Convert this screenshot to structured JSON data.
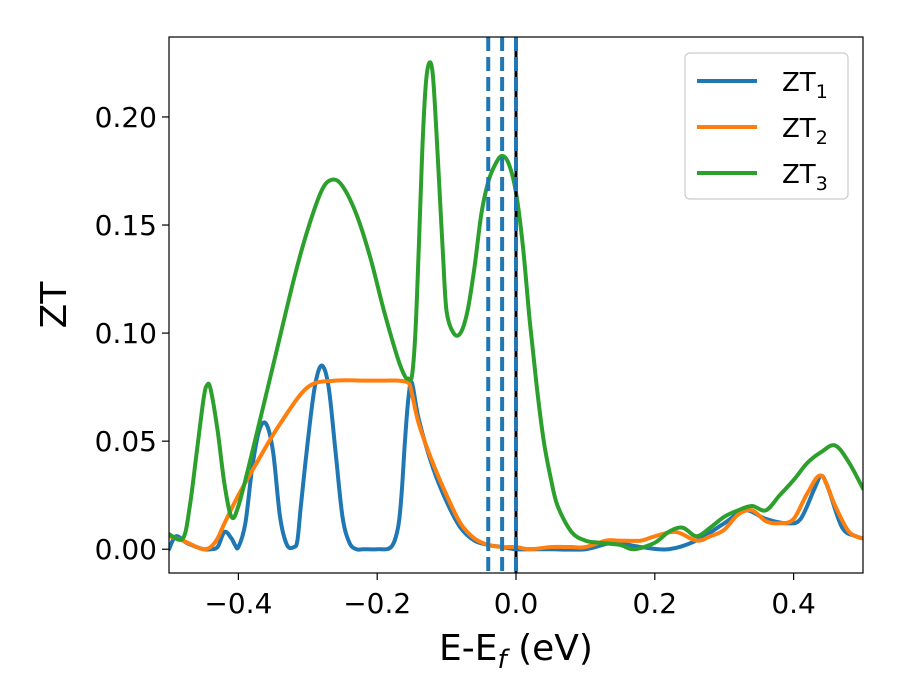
{
  "chart_data": {
    "type": "line",
    "xlabel": "E-E",
    "xlabel_sub": "f",
    "xlabel_unit": " (eV)",
    "ylabel": "ZT",
    "xlim": [
      -0.5,
      0.5
    ],
    "ylim": [
      -0.011,
      0.237
    ],
    "xticks": [
      -0.4,
      -0.2,
      0.0,
      0.2,
      0.4
    ],
    "xtick_labels": [
      "−0.4",
      "−0.2",
      "0.0",
      "0.2",
      "0.4"
    ],
    "yticks": [
      0.0,
      0.05,
      0.1,
      0.15,
      0.2
    ],
    "ytick_labels": [
      "0.00",
      "0.05",
      "0.10",
      "0.15",
      "0.20"
    ],
    "grid": false,
    "legend_position": "top-right",
    "legend": [
      {
        "base": "ZT",
        "sub": "1",
        "color": "#1f77b4"
      },
      {
        "base": "ZT",
        "sub": "2",
        "color": "#ff7f0e"
      },
      {
        "base": "ZT",
        "sub": "3",
        "color": "#2ca02c"
      }
    ],
    "vlines": [
      {
        "x": -0.04,
        "style": "dashed",
        "color": "#1f77b4"
      },
      {
        "x": -0.02,
        "style": "dashed",
        "color": "#1f77b4"
      },
      {
        "x": 0.0,
        "style": "solid",
        "color": "#000000"
      },
      {
        "x": 0.0,
        "style": "dashed",
        "color": "#1f77b4"
      }
    ],
    "series": [
      {
        "color": "#1f77b4",
        "x": [
          -0.5,
          -0.49,
          -0.475,
          -0.46,
          -0.45,
          -0.44,
          -0.43,
          -0.42,
          -0.41,
          -0.405,
          -0.4,
          -0.39,
          -0.38,
          -0.37,
          -0.36,
          -0.35,
          -0.34,
          -0.33,
          -0.32,
          -0.315,
          -0.31,
          -0.3,
          -0.29,
          -0.28,
          -0.27,
          -0.26,
          -0.25,
          -0.24,
          -0.23,
          -0.22,
          -0.2,
          -0.18,
          -0.17,
          -0.165,
          -0.16,
          -0.155,
          -0.15,
          -0.14,
          -0.12,
          -0.1,
          -0.08,
          -0.06,
          -0.04,
          -0.02,
          0.0,
          0.02,
          0.05,
          0.1,
          0.14,
          0.18,
          0.22,
          0.26,
          0.3,
          0.33,
          0.36,
          0.39,
          0.41,
          0.43,
          0.44,
          0.45,
          0.47,
          0.49,
          0.5
        ],
        "y": [
          0.0,
          0.006,
          0.003,
          0.001,
          0.0,
          0.0,
          0.001,
          0.008,
          0.005,
          0.002,
          0.001,
          0.012,
          0.038,
          0.055,
          0.058,
          0.045,
          0.015,
          0.002,
          0.001,
          0.004,
          0.02,
          0.05,
          0.075,
          0.085,
          0.075,
          0.045,
          0.015,
          0.003,
          0.0,
          0.0,
          0.0,
          0.001,
          0.01,
          0.025,
          0.05,
          0.07,
          0.077,
          0.06,
          0.038,
          0.022,
          0.01,
          0.004,
          0.002,
          0.001,
          0.0,
          0.0,
          0.0,
          0.0,
          0.003,
          0.001,
          0.0,
          0.004,
          0.012,
          0.018,
          0.014,
          0.012,
          0.014,
          0.028,
          0.034,
          0.028,
          0.01,
          0.006,
          0.005
        ]
      },
      {
        "color": "#ff7f0e",
        "x": [
          -0.5,
          -0.48,
          -0.46,
          -0.45,
          -0.44,
          -0.43,
          -0.42,
          -0.4,
          -0.37,
          -0.34,
          -0.3,
          -0.26,
          -0.22,
          -0.19,
          -0.17,
          -0.155,
          -0.15,
          -0.14,
          -0.12,
          -0.1,
          -0.08,
          -0.06,
          -0.04,
          -0.02,
          0.0,
          0.02,
          0.05,
          0.08,
          0.1,
          0.13,
          0.15,
          0.18,
          0.2,
          0.23,
          0.26,
          0.28,
          0.3,
          0.32,
          0.34,
          0.36,
          0.38,
          0.4,
          0.42,
          0.44,
          0.46,
          0.48,
          0.5
        ],
        "y": [
          0.006,
          0.004,
          0.001,
          0.0,
          0.001,
          0.005,
          0.012,
          0.025,
          0.042,
          0.058,
          0.075,
          0.078,
          0.078,
          0.078,
          0.078,
          0.077,
          0.072,
          0.058,
          0.04,
          0.025,
          0.012,
          0.005,
          0.002,
          0.001,
          0.001,
          0.0,
          0.001,
          0.001,
          0.001,
          0.004,
          0.004,
          0.004,
          0.006,
          0.008,
          0.004,
          0.006,
          0.009,
          0.016,
          0.018,
          0.013,
          0.012,
          0.014,
          0.026,
          0.034,
          0.02,
          0.008,
          0.005
        ]
      },
      {
        "color": "#2ca02c",
        "x": [
          -0.5,
          -0.48,
          -0.47,
          -0.46,
          -0.45,
          -0.445,
          -0.44,
          -0.43,
          -0.42,
          -0.41,
          -0.4,
          -0.38,
          -0.35,
          -0.32,
          -0.3,
          -0.28,
          -0.265,
          -0.25,
          -0.23,
          -0.21,
          -0.19,
          -0.17,
          -0.16,
          -0.155,
          -0.15,
          -0.145,
          -0.14,
          -0.135,
          -0.13,
          -0.125,
          -0.12,
          -0.115,
          -0.11,
          -0.105,
          -0.1,
          -0.09,
          -0.08,
          -0.07,
          -0.06,
          -0.05,
          -0.04,
          -0.03,
          -0.02,
          -0.01,
          0.0,
          0.01,
          0.02,
          0.03,
          0.04,
          0.05,
          0.06,
          0.08,
          0.1,
          0.12,
          0.15,
          0.17,
          0.2,
          0.22,
          0.24,
          0.26,
          0.28,
          0.3,
          0.32,
          0.34,
          0.36,
          0.38,
          0.4,
          0.42,
          0.44,
          0.46,
          0.48,
          0.5
        ],
        "y": [
          0.007,
          0.005,
          0.02,
          0.045,
          0.07,
          0.076,
          0.074,
          0.055,
          0.03,
          0.015,
          0.02,
          0.045,
          0.085,
          0.125,
          0.148,
          0.166,
          0.171,
          0.168,
          0.155,
          0.135,
          0.11,
          0.088,
          0.08,
          0.079,
          0.08,
          0.1,
          0.14,
          0.185,
          0.215,
          0.225,
          0.22,
          0.195,
          0.165,
          0.135,
          0.11,
          0.1,
          0.1,
          0.11,
          0.13,
          0.155,
          0.17,
          0.178,
          0.182,
          0.178,
          0.165,
          0.14,
          0.105,
          0.075,
          0.05,
          0.033,
          0.02,
          0.008,
          0.004,
          0.003,
          0.002,
          0.0,
          0.003,
          0.008,
          0.01,
          0.006,
          0.01,
          0.015,
          0.018,
          0.02,
          0.018,
          0.025,
          0.032,
          0.04,
          0.045,
          0.048,
          0.04,
          0.028
        ]
      }
    ]
  }
}
